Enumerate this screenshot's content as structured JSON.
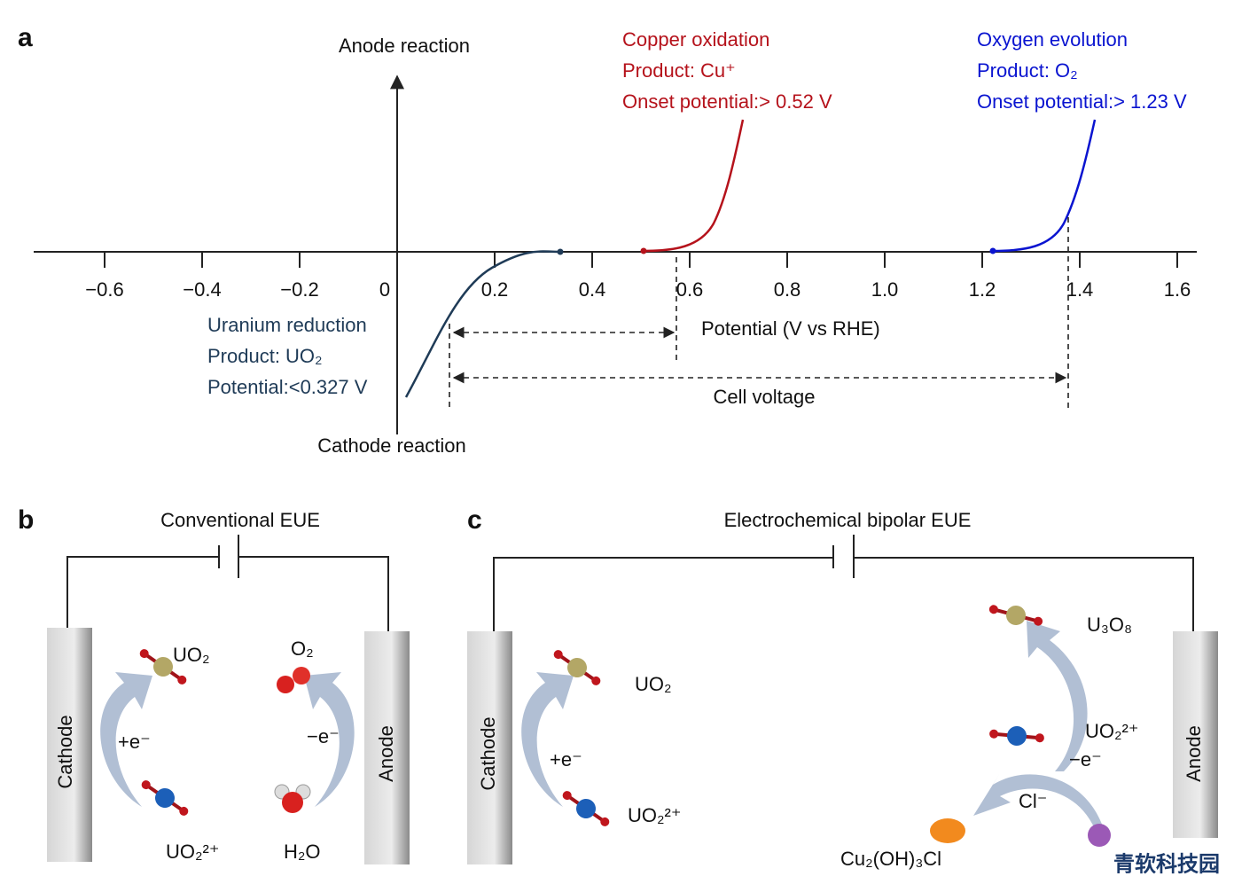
{
  "panel_a": {
    "label": "a",
    "y_axis_top": "Anode reaction",
    "y_axis_bottom": "Cathode reaction",
    "x_axis_title": "Potential (V vs RHE)",
    "x_ticks": [
      {
        "value": -0.6,
        "label": "−0.6"
      },
      {
        "value": -0.4,
        "label": "−0.4"
      },
      {
        "value": -0.2,
        "label": "−0.2"
      },
      0,
      0.2,
      0.4,
      0.6,
      0.8,
      {
        "value": 1,
        "label": "1.0"
      },
      1.2,
      1.4,
      1.6
    ],
    "copper": {
      "name": "Copper oxidation",
      "product": "Product: Cu⁺",
      "onset": "Onset potential:> 0.52 V"
    },
    "oxygen": {
      "name": "Oxygen evolution",
      "product": "Product: O₂",
      "onset": "Onset potential:> 1.23 V"
    },
    "uranium": {
      "name": "Uranium reduction",
      "product": "Product: UO₂",
      "potential": "Potential:<0.327 V"
    },
    "cell_voltage": "Cell voltage"
  },
  "panel_b": {
    "label": "b",
    "title": "Conventional EUE",
    "cathode": "Cathode",
    "anode": "Anode",
    "uo2": "UO₂",
    "plus_e": "+e⁻",
    "uo2_ion": "UO₂²⁺",
    "o2": "O₂",
    "minus_e": "−e⁻",
    "h2o": "H₂O"
  },
  "panel_c": {
    "label": "c",
    "title": "Electrochemical bipolar EUE",
    "cathode": "Cathode",
    "anode": "Anode",
    "uo2": "UO₂",
    "plus_e": "+e⁻",
    "uo2_ion": "UO₂²⁺",
    "u3o8": "U₃O₈",
    "uo2_ion_anode": "UO₂²⁺",
    "minus_e": "−e⁻",
    "cl": "Cl⁻",
    "product": "Cu₂(OH)₃Cl"
  },
  "watermark": "青软科技园"
}
